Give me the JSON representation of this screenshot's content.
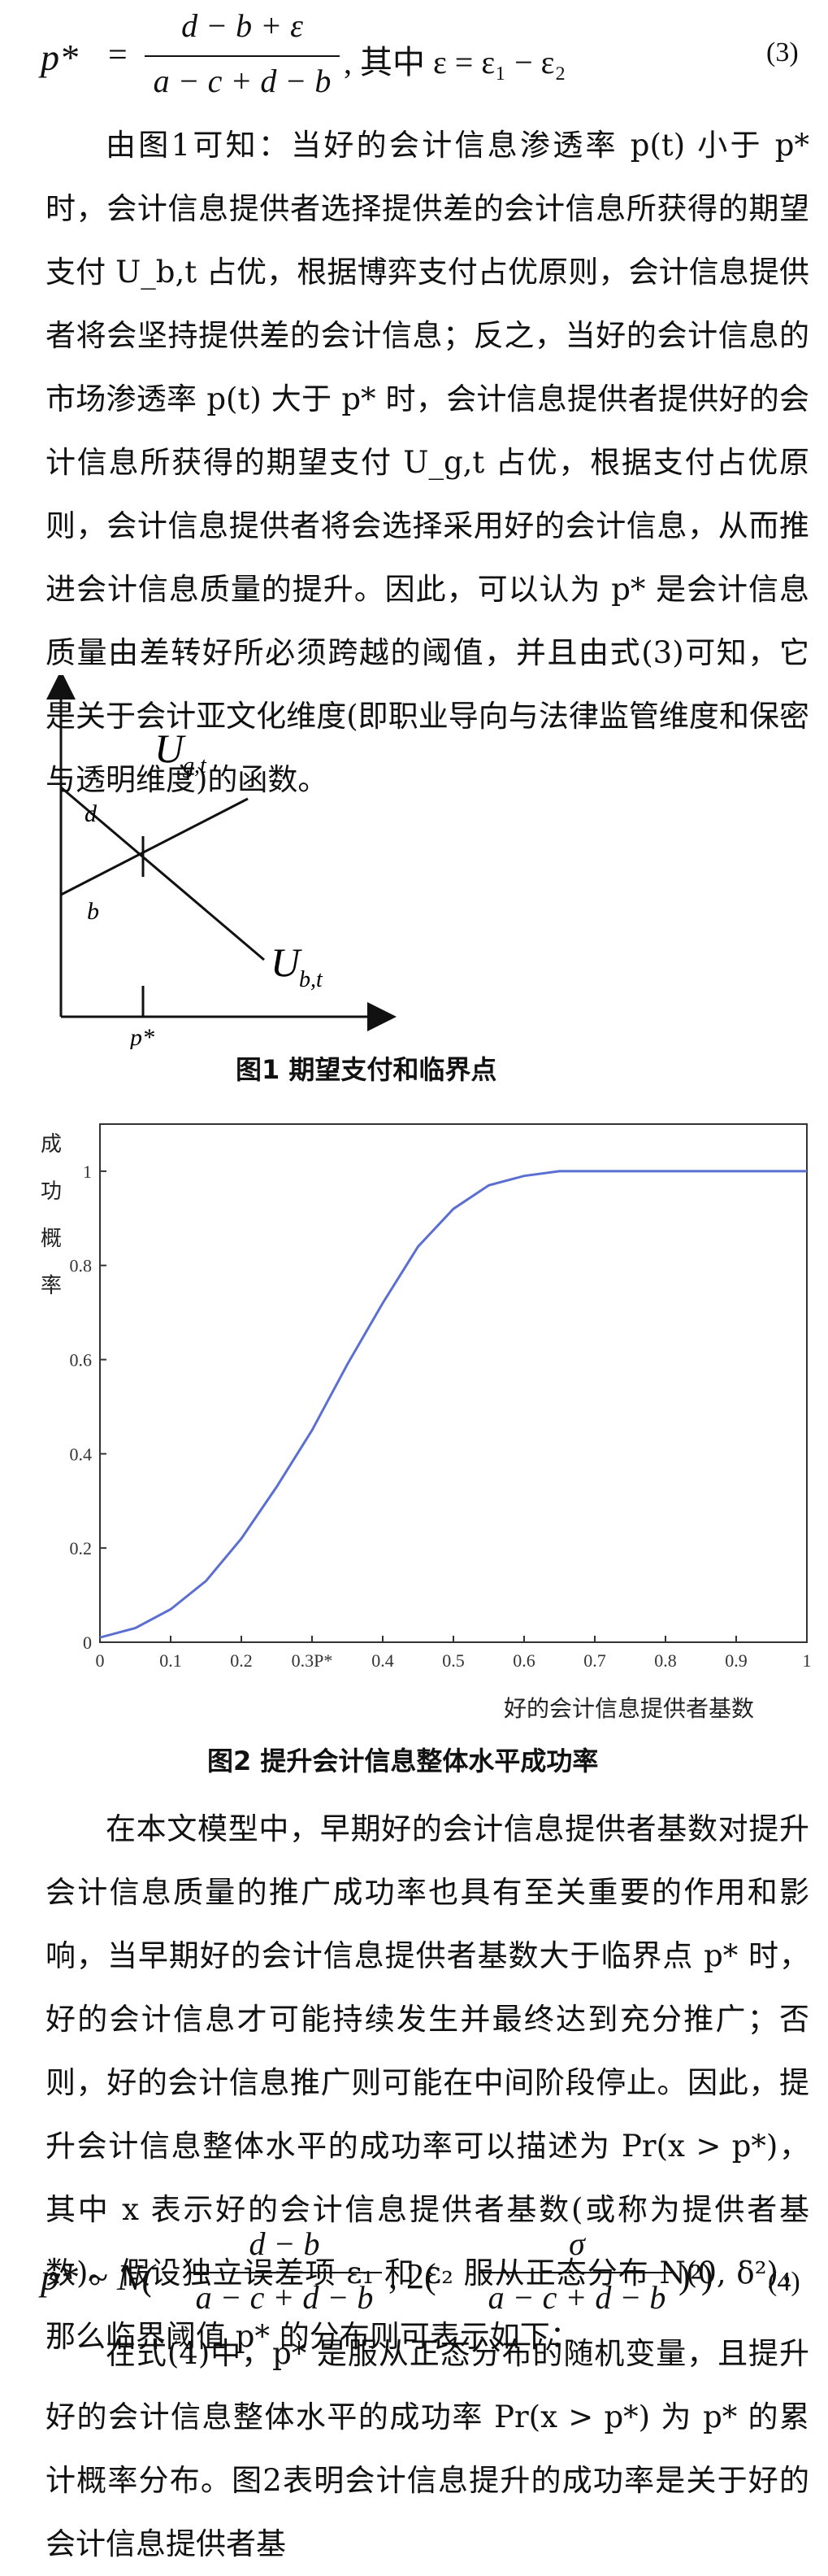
{
  "equation3": {
    "lhs": "p*",
    "numerator": "d − b + ε",
    "denominator": "a − c + d − b",
    "condition": ", 其中 ε = ε₁ − ε₂",
    "number": "(3)"
  },
  "paragraph1": "由图1可知：当好的会计信息渗透率 p(t) 小于 p* 时，会计信息提供者选择提供差的会计信息所获得的期望支付 U_b,t 占优，根据博弈支付占优原则，会计信息提供者将会坚持提供差的会计信息；反之，当好的会计信息的市场渗透率 p(t) 大于 p* 时，会计信息提供者提供好的会计信息所获得的期望支付 U_g,t 占优，根据支付占优原则，会计信息提供者将会选择采用好的会计信息，从而推进会计信息质量的提升。因此，可以认为 p* 是会计信息质量由差转好所必须跨越的阈值，并且由式(3)可知，它是关于会计亚文化维度(即职业导向与法律监管维度和保密与透明维度)的函数。",
  "figure1": {
    "label_ug": "U",
    "label_ug_sub": "g,t",
    "label_ub": "U",
    "label_ub_sub": "b,t",
    "label_d": "d",
    "label_b": "b",
    "label_p": "p*",
    "caption": "图1  期望支付和临界点"
  },
  "figure2": {
    "caption": "图2  提升会计信息整体水平成功率",
    "ylabel": "成功概率",
    "xlabel": "好的会计信息提供者基数",
    "series_color": "#5b6fd1"
  },
  "chart_data": {
    "type": "line",
    "xlabel": "好的会计信息提供者基数",
    "ylabel": "成功概率",
    "xlim": [
      0,
      1
    ],
    "ylim": [
      0,
      1.1
    ],
    "x_ticks": [
      "0",
      "0.1",
      "0.2",
      "0.3P*",
      "0.4",
      "0.5",
      "0.6",
      "0.7",
      "0.8",
      "0.9",
      "1"
    ],
    "y_ticks": [
      "0",
      "0.2",
      "0.4",
      "0.6",
      "0.8",
      "1"
    ],
    "grid": false,
    "series": [
      {
        "x": [
          0,
          0.05,
          0.1,
          0.15,
          0.2,
          0.25,
          0.3,
          0.35,
          0.4,
          0.45,
          0.5,
          0.55,
          0.6,
          0.65,
          0.7,
          0.8,
          0.9,
          1.0
        ],
        "y": [
          0.01,
          0.03,
          0.07,
          0.13,
          0.22,
          0.33,
          0.45,
          0.59,
          0.72,
          0.84,
          0.92,
          0.97,
          0.99,
          1.0,
          1.0,
          1.0,
          1.0,
          1.0
        ]
      }
    ]
  },
  "paragraph2": "在本文模型中，早期好的会计信息提供者基数对提升会计信息质量的推广成功率也具有至关重要的作用和影响，当早期好的会计信息提供者基数大于临界点 p* 时，好的会计信息才可能持续发生并最终达到充分推广；否则，好的会计信息推广则可能在中间阶段停止。因此，提升会计信息整体水平的成功率可以描述为 Pr(x > p*)，其中 x 表示好的会计信息提供者基数(或称为提供者基数)。假设独立误差项 ε₁ 和 ε₂ 服从正态分布 N(0, δ²)，那么临界阈值 p* 的分布则可表示如下：",
  "equation4": {
    "lhs": "p* ~ N(",
    "frac1_num": "d − b",
    "frac1_den": "a − c + d − b",
    "middle": ", 2(",
    "frac2_num": "σ",
    "frac2_den": "a − c + d − b",
    "tail": ")²)",
    "number": "(4)"
  },
  "paragraph3": "在式(4)中，p* 是服从正态分布的随机变量，且提升好的会计信息整体水平的成功率 Pr(x > p*) 为 p* 的累计概率分布。图2表明会计信息提升的成功率是关于好的会计信息提供者基"
}
